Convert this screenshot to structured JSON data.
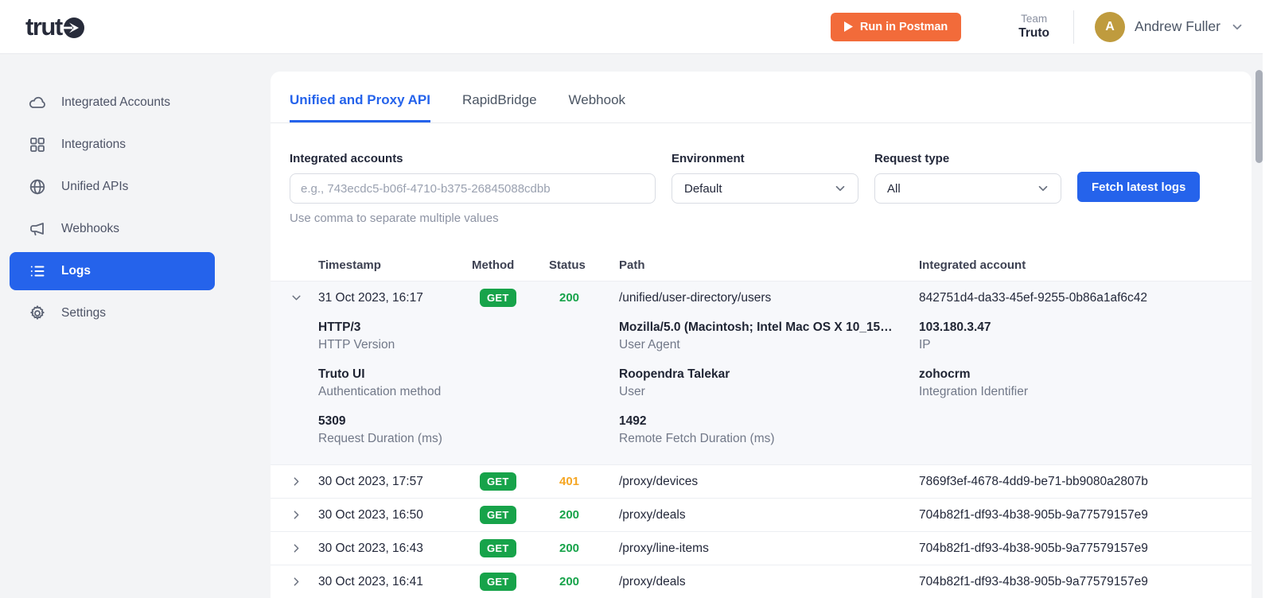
{
  "header": {
    "logo_text": "trut",
    "run_in_postman": "Run in Postman",
    "team_label": "Team",
    "team_name": "Truto",
    "user_initial": "A",
    "user_name": "Andrew Fuller"
  },
  "sidebar": {
    "items": [
      {
        "label": "Integrated Accounts",
        "icon": "cloud-icon",
        "active": false
      },
      {
        "label": "Integrations",
        "icon": "grid-icon",
        "active": false
      },
      {
        "label": "Unified APIs",
        "icon": "globe-icon",
        "active": false
      },
      {
        "label": "Webhooks",
        "icon": "megaphone-icon",
        "active": false
      },
      {
        "label": "Logs",
        "icon": "list-icon",
        "active": true
      },
      {
        "label": "Settings",
        "icon": "gear-icon",
        "active": false
      }
    ]
  },
  "tabs": [
    {
      "label": "Unified and Proxy API",
      "active": true
    },
    {
      "label": "RapidBridge",
      "active": false
    },
    {
      "label": "Webhook",
      "active": false
    }
  ],
  "filters": {
    "integrated_accounts": {
      "label": "Integrated accounts",
      "placeholder": "e.g., 743ecdc5-b06f-4710-b375-26845088cdbb",
      "value": "",
      "helper": "Use comma to separate multiple values"
    },
    "environment": {
      "label": "Environment",
      "value": "Default"
    },
    "request_type": {
      "label": "Request type",
      "value": "All"
    },
    "fetch_button_label": "Fetch latest logs"
  },
  "table": {
    "columns": [
      "Timestamp",
      "Method",
      "Status",
      "Path",
      "Integrated account"
    ],
    "rows": [
      {
        "timestamp": "31 Oct 2023, 16:17",
        "method": "GET",
        "status": "200",
        "status_type": "success",
        "path": "/unified/user-directory/users",
        "integrated_account": "842751d4-da33-45ef-9255-0b86a1af6c42",
        "expanded": true,
        "details": [
          {
            "value": "HTTP/3",
            "label": "HTTP Version"
          },
          {
            "value": "Mozilla/5.0 (Macintosh; Intel Mac OS X 10_15…",
            "label": "User Agent"
          },
          {
            "value": "103.180.3.47",
            "label": "IP"
          },
          {
            "value": "Truto UI",
            "label": "Authentication method"
          },
          {
            "value": "Roopendra Talekar",
            "label": "User"
          },
          {
            "value": "zohocrm",
            "label": "Integration Identifier"
          },
          {
            "value": "5309",
            "label": "Request Duration (ms)"
          },
          {
            "value": "1492",
            "label": "Remote Fetch Duration (ms)"
          }
        ]
      },
      {
        "timestamp": "30 Oct 2023, 17:57",
        "method": "GET",
        "status": "401",
        "status_type": "warning",
        "path": "/proxy/devices",
        "integrated_account": "7869f3ef-4678-4dd9-be71-bb9080a2807b",
        "expanded": false
      },
      {
        "timestamp": "30 Oct 2023, 16:50",
        "method": "GET",
        "status": "200",
        "status_type": "success",
        "path": "/proxy/deals",
        "integrated_account": "704b82f1-df93-4b38-905b-9a77579157e9",
        "expanded": false
      },
      {
        "timestamp": "30 Oct 2023, 16:43",
        "method": "GET",
        "status": "200",
        "status_type": "success",
        "path": "/proxy/line-items",
        "integrated_account": "704b82f1-df93-4b38-905b-9a77579157e9",
        "expanded": false
      },
      {
        "timestamp": "30 Oct 2023, 16:41",
        "method": "GET",
        "status": "200",
        "status_type": "success",
        "path": "/proxy/deals",
        "integrated_account": "704b82f1-df93-4b38-905b-9a77579157e9",
        "expanded": false
      }
    ]
  },
  "colors": {
    "accent_blue": "#2563eb",
    "success_green": "#17a34a",
    "warning_orange": "#f5a623",
    "postman_orange": "#f26b3a",
    "avatar_gold": "#bf9b3e"
  }
}
